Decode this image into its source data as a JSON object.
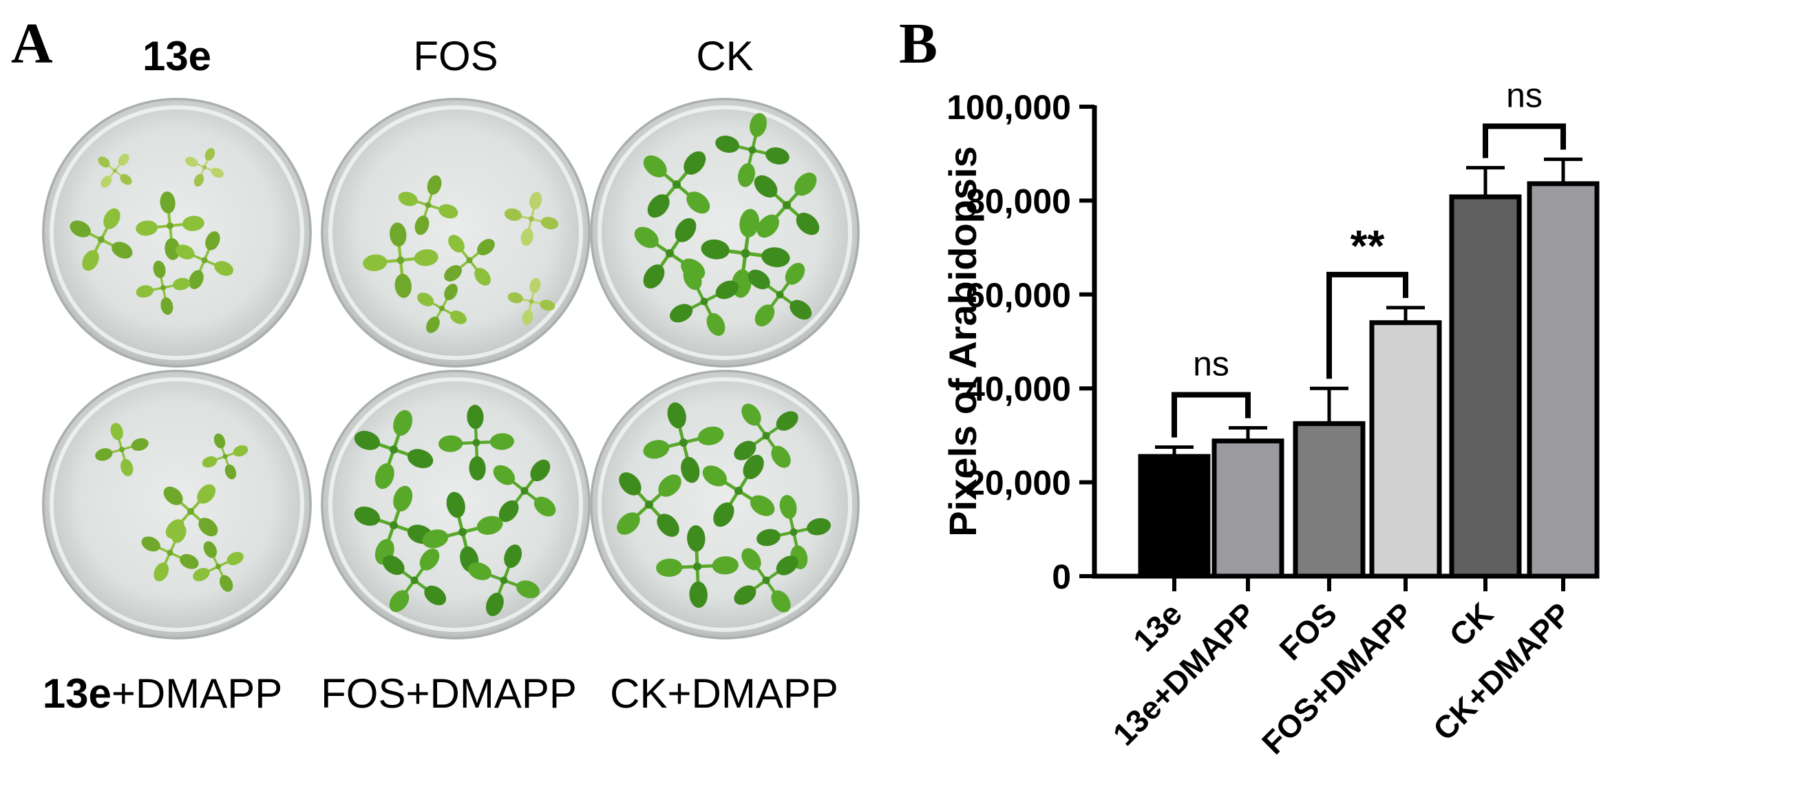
{
  "panel_a": {
    "letter": "A",
    "top_labels": [
      {
        "bold": "13e",
        "rest": ""
      },
      {
        "bold": "",
        "rest": "FOS"
      },
      {
        "bold": "",
        "rest": "CK"
      }
    ],
    "bottom_labels": [
      {
        "bold": "13e",
        "rest": "+DMAPP"
      },
      {
        "bold": "",
        "rest": "FOS+DMAPP"
      },
      {
        "bold": "",
        "rest": "CK+DMAPP"
      }
    ]
  },
  "panel_b": {
    "letter": "B"
  },
  "chart_data": {
    "type": "bar",
    "title": "",
    "xlabel": "",
    "ylabel": "Pixels of Arabidopsis",
    "ylim": [
      0,
      100000
    ],
    "yticks": [
      0,
      20000,
      40000,
      60000,
      80000,
      100000
    ],
    "ytick_labels": [
      "0",
      "20,000",
      "40,000",
      "60,000",
      "80,000",
      "100,000"
    ],
    "categories": [
      "13e",
      "13e+DMAPP",
      "FOS",
      "FOS+DMAPP",
      "CK",
      "CK+DMAPP"
    ],
    "values": [
      25500,
      28800,
      32500,
      54000,
      80800,
      83600
    ],
    "errors": [
      2000,
      2800,
      7500,
      3200,
      6200,
      5200
    ],
    "bar_colors": [
      "#000000",
      "#9b9a9f",
      "#7d7d7d",
      "#d2d2d2",
      "#606060",
      "#9b9a9f"
    ],
    "grid": false,
    "comparisons": [
      {
        "pair": [
          0,
          1
        ],
        "label": "ns"
      },
      {
        "pair": [
          2,
          3
        ],
        "label": "**"
      },
      {
        "pair": [
          4,
          5
        ],
        "label": "ns"
      }
    ]
  }
}
